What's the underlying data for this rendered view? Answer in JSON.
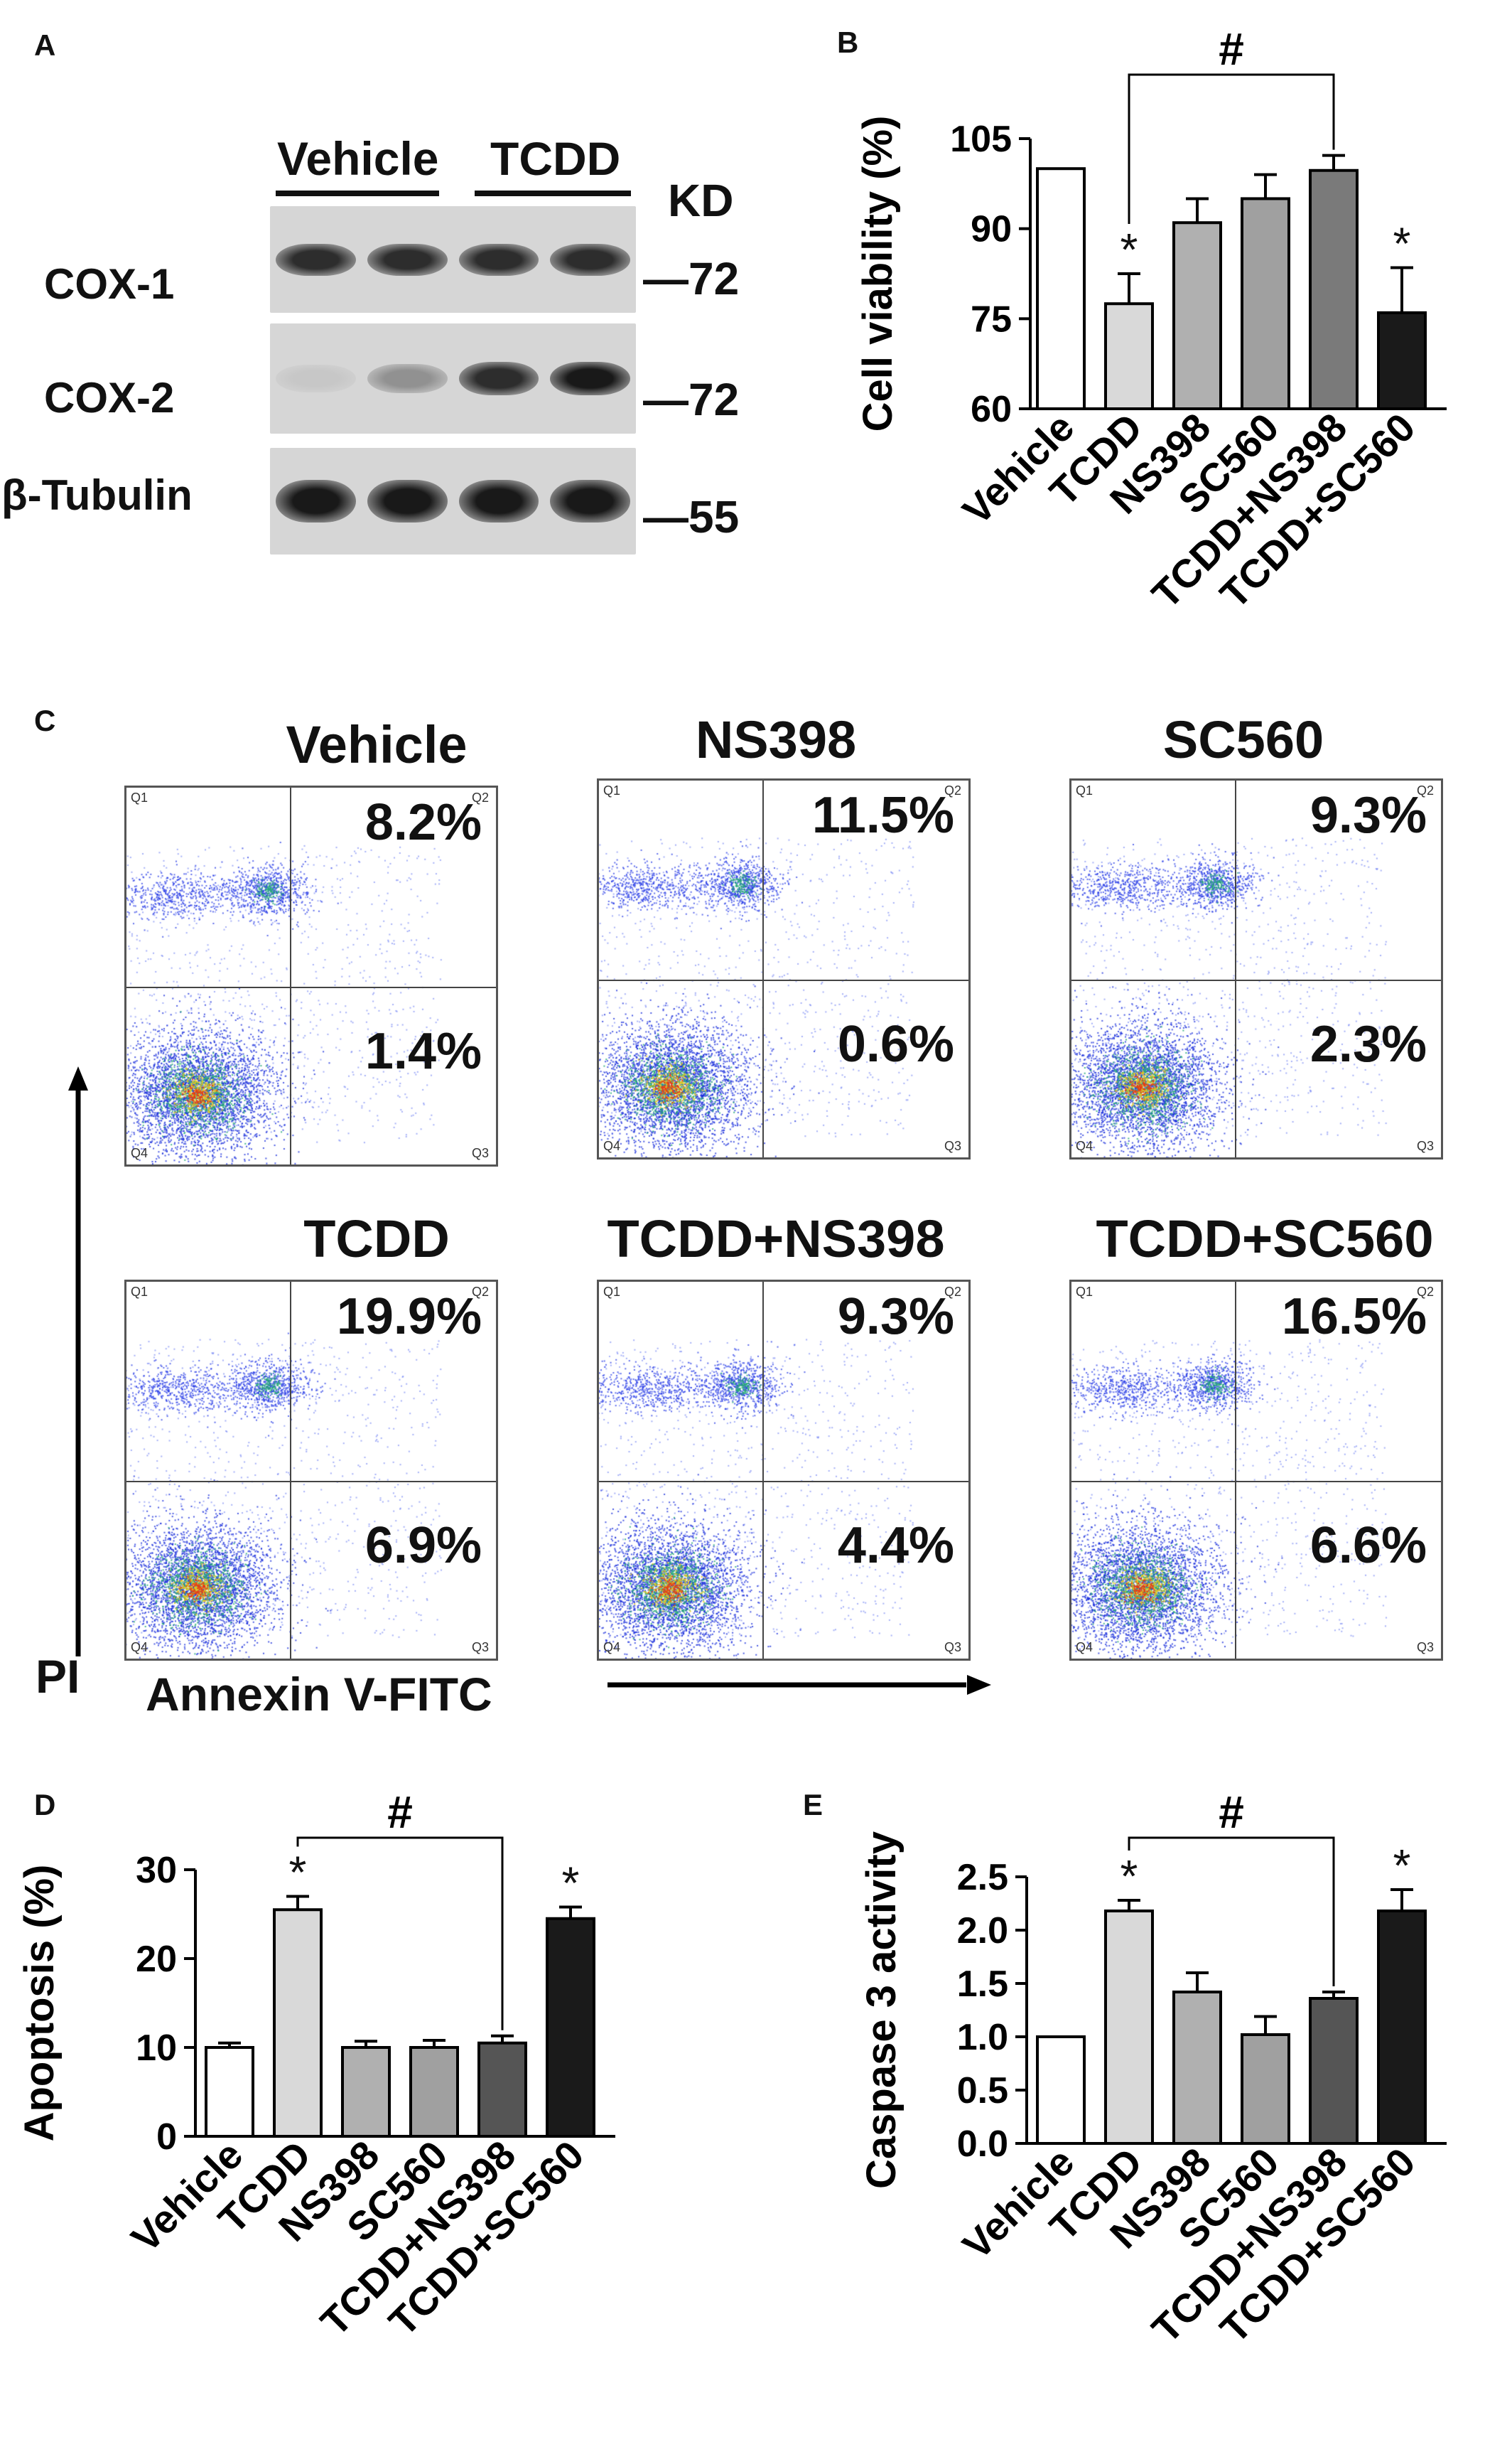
{
  "panel_labels": {
    "a": "A",
    "b": "B",
    "c": "C",
    "d": "D",
    "e": "E"
  },
  "western_blot": {
    "group_labels": [
      "Vehicle",
      "TCDD"
    ],
    "kd_header": "KD",
    "rows": [
      {
        "name": "COX-1",
        "kd": "—72",
        "intensity": [
          0.85,
          0.85,
          0.85,
          0.85
        ]
      },
      {
        "name": "COX-2",
        "kd": "—72",
        "intensity": [
          0.08,
          0.35,
          0.85,
          0.95
        ]
      },
      {
        "name": "β-Tubulin",
        "kd": "—55",
        "intensity": [
          0.95,
          0.95,
          0.95,
          0.95
        ]
      }
    ]
  },
  "flow": {
    "x_axis_label": "Annexin V-FITC",
    "y_axis_label": "PI",
    "quadrant_labels": [
      "Q1",
      "Q2",
      "Q3",
      "Q4"
    ],
    "plots": [
      {
        "title": "Vehicle",
        "q2": "8.2%",
        "q3": "1.4%"
      },
      {
        "title": "NS398",
        "q2": "11.5%",
        "q3": "0.6%"
      },
      {
        "title": "SC560",
        "q2": "9.3%",
        "q3": "2.3%"
      },
      {
        "title": "TCDD",
        "q2": "19.9%",
        "q3": "6.9%"
      },
      {
        "title": "TCDD+NS398",
        "q2": "9.3%",
        "q3": "4.4%"
      },
      {
        "title": "TCDD+SC560",
        "q2": "16.5%",
        "q3": "6.6%"
      }
    ]
  },
  "chart_data": [
    {
      "panel": "B",
      "type": "bar",
      "categories": [
        "Vehicle",
        "TCDD",
        "NS398",
        "SC560",
        "TCDD+NS398",
        "TCDD+SC560"
      ],
      "values": [
        100,
        77.5,
        91,
        95,
        99.7,
        76
      ],
      "errors": [
        0,
        5,
        4,
        4,
        2.5,
        7.5
      ],
      "bar_colors": [
        "#ffffff",
        "#d9d9d9",
        "#b0b0b0",
        "#a0a0a0",
        "#7a7a7a",
        "#1a1a1a"
      ],
      "significance": [
        "",
        "*",
        "",
        "",
        "",
        "*"
      ],
      "bracket": {
        "from": 1,
        "to": 4,
        "label": "#"
      },
      "ylabel": "Cell viability (%)",
      "ylim": [
        60,
        105
      ],
      "yticks": [
        60,
        75,
        90,
        105
      ],
      "ytick_labels": [
        "60",
        "75",
        "90",
        "105"
      ]
    },
    {
      "panel": "D",
      "type": "bar",
      "categories": [
        "Vehicle",
        "TCDD",
        "NS398",
        "SC560",
        "TCDD+NS398",
        "TCDD+SC560"
      ],
      "values": [
        10,
        25.5,
        10,
        10,
        10.5,
        24.5
      ],
      "errors": [
        0.5,
        1.5,
        0.7,
        0.8,
        0.8,
        1.3
      ],
      "bar_colors": [
        "#ffffff",
        "#d9d9d9",
        "#b0b0b0",
        "#a0a0a0",
        "#555555",
        "#1a1a1a"
      ],
      "significance": [
        "",
        "*",
        "",
        "",
        "",
        "*"
      ],
      "bracket": {
        "from": 1,
        "to": 4,
        "label": "#"
      },
      "ylabel": "Apoptosis (%)",
      "ylim": [
        0,
        30
      ],
      "yticks": [
        0,
        10,
        20,
        30
      ],
      "ytick_labels": [
        "0",
        "10",
        "20",
        "30"
      ]
    },
    {
      "panel": "E",
      "type": "bar",
      "categories": [
        "Vehicle",
        "TCDD",
        "NS398",
        "SC560",
        "TCDD+NS398",
        "TCDD+SC560"
      ],
      "values": [
        1.0,
        2.18,
        1.42,
        1.02,
        1.36,
        2.18
      ],
      "errors": [
        0,
        0.1,
        0.18,
        0.17,
        0.06,
        0.2
      ],
      "bar_colors": [
        "#ffffff",
        "#d9d9d9",
        "#b0b0b0",
        "#a0a0a0",
        "#555555",
        "#1a1a1a"
      ],
      "significance": [
        "",
        "*",
        "",
        "",
        "",
        "*"
      ],
      "bracket": {
        "from": 1,
        "to": 4,
        "label": "#"
      },
      "ylabel": "Caspase 3 activity",
      "ylim": [
        0,
        2.5
      ],
      "yticks": [
        0,
        0.5,
        1.0,
        1.5,
        2.0,
        2.5
      ],
      "ytick_labels": [
        "0.0",
        "0.5",
        "1.0",
        "1.5",
        "2.0",
        "2.5"
      ]
    }
  ]
}
